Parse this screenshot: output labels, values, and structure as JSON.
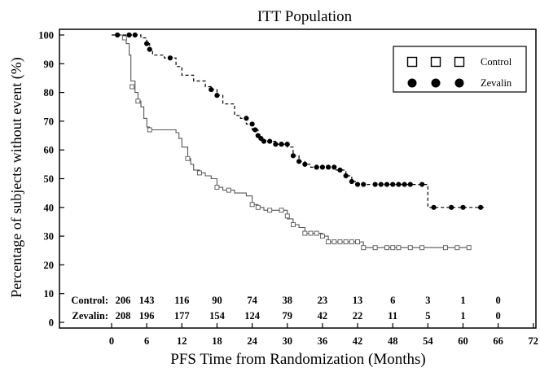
{
  "chart_data": {
    "type": "line",
    "title": "ITT Population",
    "xlabel": "PFS Time from Randomization (Months)",
    "ylabel": "Percentage of subjects without event (%)",
    "xlim": [
      0,
      72
    ],
    "ylim": [
      0,
      100
    ],
    "x_ticks": [
      0,
      6,
      12,
      18,
      24,
      30,
      36,
      42,
      48,
      54,
      60,
      66,
      72
    ],
    "y_ticks": [
      0,
      10,
      20,
      30,
      40,
      50,
      60,
      70,
      80,
      90,
      100
    ],
    "grid": false,
    "legend_position": "top-right",
    "series": [
      {
        "name": "Control",
        "line_style": "solid",
        "marker": "open-square",
        "color": "#555555",
        "steps": [
          [
            0,
            100
          ],
          [
            2,
            99
          ],
          [
            2.5,
            97
          ],
          [
            3,
            93
          ],
          [
            3.3,
            84
          ],
          [
            4,
            80
          ],
          [
            4.5,
            77
          ],
          [
            5,
            75
          ],
          [
            5.5,
            71
          ],
          [
            6,
            68
          ],
          [
            6.5,
            67
          ],
          [
            11,
            66
          ],
          [
            11.5,
            64
          ],
          [
            12,
            61
          ],
          [
            13,
            57
          ],
          [
            13.5,
            55
          ],
          [
            14,
            53
          ],
          [
            15,
            52
          ],
          [
            16,
            51
          ],
          [
            17,
            50
          ],
          [
            18,
            47
          ],
          [
            19,
            46
          ],
          [
            21,
            45
          ],
          [
            23,
            44
          ],
          [
            24,
            41
          ],
          [
            25,
            40
          ],
          [
            26,
            39
          ],
          [
            30,
            36
          ],
          [
            31,
            34
          ],
          [
            32,
            33
          ],
          [
            33,
            31
          ],
          [
            36,
            30
          ],
          [
            37,
            28
          ],
          [
            43,
            26
          ],
          [
            61,
            26
          ]
        ],
        "censor_points": [
          [
            2.2,
            99
          ],
          [
            3.5,
            82
          ],
          [
            4.5,
            77
          ],
          [
            6.5,
            67
          ],
          [
            13,
            57
          ],
          [
            15,
            52
          ],
          [
            18,
            47
          ],
          [
            20,
            46
          ],
          [
            24,
            41
          ],
          [
            25,
            40
          ],
          [
            27,
            39
          ],
          [
            29,
            39
          ],
          [
            30,
            37
          ],
          [
            31,
            34
          ],
          [
            33,
            31
          ],
          [
            34,
            31
          ],
          [
            35,
            31
          ],
          [
            36,
            30
          ],
          [
            37,
            28
          ],
          [
            38,
            28
          ],
          [
            39,
            28
          ],
          [
            40,
            28
          ],
          [
            41,
            28
          ],
          [
            42,
            28
          ],
          [
            43,
            26
          ],
          [
            45,
            26
          ],
          [
            47,
            26
          ],
          [
            48,
            26
          ],
          [
            49,
            26
          ],
          [
            51,
            26
          ],
          [
            53,
            26
          ],
          [
            57,
            26
          ],
          [
            59,
            26
          ],
          [
            61,
            26
          ]
        ]
      },
      {
        "name": "Zevalin",
        "line_style": "dashed",
        "marker": "filled-circle",
        "color": "#000000",
        "steps": [
          [
            0,
            100
          ],
          [
            5,
            99
          ],
          [
            6,
            97
          ],
          [
            6.5,
            95
          ],
          [
            7,
            93
          ],
          [
            9,
            92
          ],
          [
            11,
            89
          ],
          [
            12,
            86
          ],
          [
            14,
            84
          ],
          [
            16,
            82
          ],
          [
            17,
            81
          ],
          [
            18,
            79
          ],
          [
            19,
            76
          ],
          [
            21,
            72
          ],
          [
            22,
            71
          ],
          [
            23,
            69
          ],
          [
            24,
            67
          ],
          [
            25,
            64
          ],
          [
            26,
            63
          ],
          [
            28,
            62
          ],
          [
            30,
            61
          ],
          [
            31,
            58
          ],
          [
            32,
            56
          ],
          [
            33,
            55
          ],
          [
            34,
            54
          ],
          [
            38,
            53
          ],
          [
            40,
            51
          ],
          [
            41,
            49
          ],
          [
            42,
            48
          ],
          [
            53,
            48
          ],
          [
            54,
            40
          ],
          [
            64,
            40
          ]
        ],
        "censor_points": [
          [
            1,
            100
          ],
          [
            3,
            100
          ],
          [
            4,
            100
          ],
          [
            6,
            97
          ],
          [
            6.5,
            95
          ],
          [
            10,
            92
          ],
          [
            17,
            81
          ],
          [
            18,
            79
          ],
          [
            23,
            71
          ],
          [
            24,
            69
          ],
          [
            24.5,
            67
          ],
          [
            25,
            65
          ],
          [
            25.5,
            64
          ],
          [
            26,
            63
          ],
          [
            27,
            63
          ],
          [
            28,
            62
          ],
          [
            29,
            62
          ],
          [
            30,
            62
          ],
          [
            31,
            58
          ],
          [
            32,
            56
          ],
          [
            33,
            55
          ],
          [
            35,
            54
          ],
          [
            36,
            54
          ],
          [
            37,
            54
          ],
          [
            38,
            54
          ],
          [
            39,
            53
          ],
          [
            40,
            51
          ],
          [
            41,
            49
          ],
          [
            42,
            48
          ],
          [
            43,
            48
          ],
          [
            45,
            48
          ],
          [
            46,
            48
          ],
          [
            47,
            48
          ],
          [
            48,
            48
          ],
          [
            49,
            48
          ],
          [
            50,
            48
          ],
          [
            51,
            48
          ],
          [
            53,
            48
          ],
          [
            55,
            40
          ],
          [
            58,
            40
          ],
          [
            60,
            40
          ],
          [
            63,
            40
          ]
        ]
      }
    ],
    "at_risk": {
      "months": [
        0,
        6,
        12,
        18,
        24,
        30,
        36,
        42,
        48,
        54,
        60,
        66
      ],
      "rows": [
        {
          "label": "Control:",
          "values": [
            206,
            143,
            116,
            90,
            74,
            38,
            23,
            13,
            6,
            3,
            1,
            0
          ]
        },
        {
          "label": "Zevalin:",
          "values": [
            208,
            196,
            177,
            154,
            124,
            79,
            42,
            22,
            11,
            5,
            1,
            0
          ]
        }
      ]
    }
  }
}
